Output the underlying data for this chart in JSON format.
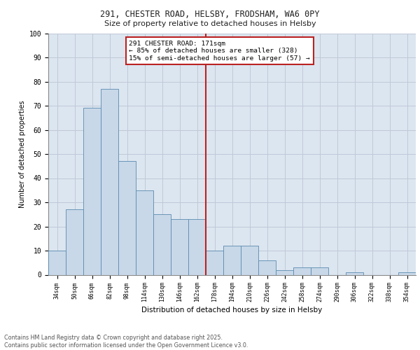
{
  "title1": "291, CHESTER ROAD, HELSBY, FRODSHAM, WA6 0PY",
  "title2": "Size of property relative to detached houses in Helsby",
  "xlabel": "Distribution of detached houses by size in Helsby",
  "ylabel": "Number of detached properties",
  "categories": [
    "34sqm",
    "50sqm",
    "66sqm",
    "82sqm",
    "98sqm",
    "114sqm",
    "130sqm",
    "146sqm",
    "162sqm",
    "178sqm",
    "194sqm",
    "210sqm",
    "226sqm",
    "242sqm",
    "258sqm",
    "274sqm",
    "290sqm",
    "306sqm",
    "322sqm",
    "338sqm",
    "354sqm"
  ],
  "values": [
    10,
    27,
    69,
    77,
    47,
    35,
    25,
    23,
    23,
    10,
    12,
    12,
    6,
    2,
    3,
    3,
    0,
    1,
    0,
    0,
    1
  ],
  "bar_color": "#c8d8e8",
  "bar_edge_color": "#5a8ab0",
  "grid_color": "#c0c8d8",
  "background_color": "#dce6f0",
  "vline_x": 8.5,
  "vline_color": "#bb2222",
  "annotation_text": "291 CHESTER ROAD: 171sqm\n← 85% of detached houses are smaller (328)\n15% of semi-detached houses are larger (57) →",
  "annotation_box_color": "#bb2222",
  "footer_text": "Contains HM Land Registry data © Crown copyright and database right 2025.\nContains public sector information licensed under the Open Government Licence v3.0.",
  "ylim": [
    0,
    100
  ],
  "yticks": [
    0,
    10,
    20,
    30,
    40,
    50,
    60,
    70,
    80,
    90,
    100
  ]
}
